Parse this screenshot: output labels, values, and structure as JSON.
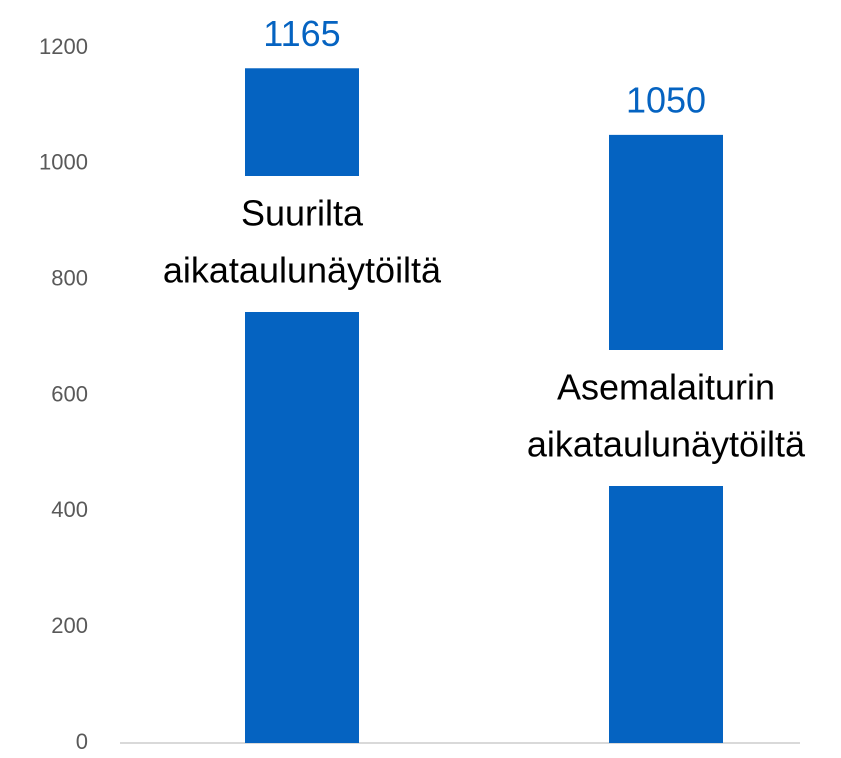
{
  "chart_data": {
    "type": "bar",
    "categories": [
      "Suurilta aikataulunäytöiltä",
      "Asemalaiturin aikataulunäytöiltä"
    ],
    "values": [
      1165,
      1050
    ],
    "color": "#0563c1",
    "ylim": [
      0,
      1200
    ],
    "yticks": [
      0,
      200,
      400,
      600,
      800,
      1000,
      1200
    ]
  }
}
